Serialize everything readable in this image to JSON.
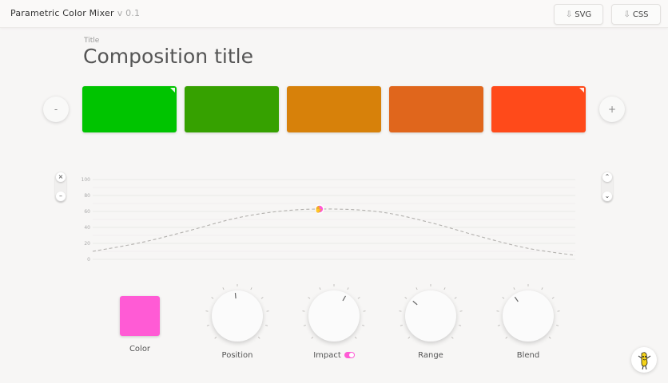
{
  "app": {
    "title": "Parametric Color Mixer",
    "version": "v 0.1"
  },
  "export": {
    "svg_label": "SVG",
    "css_label": "CSS",
    "download_icon": "download-arrow-icon"
  },
  "composition": {
    "title_label": "Title",
    "title": "Composition title"
  },
  "swatch_controls": {
    "remove_label": "-",
    "add_label": "+"
  },
  "swatches": [
    {
      "color": "#00c400"
    },
    {
      "color": "#36a100"
    },
    {
      "color": "#d7810a"
    },
    {
      "color": "#e0661c"
    },
    {
      "color": "#ff4a1a"
    }
  ],
  "curve_controls": {
    "close_label": "×",
    "minus_label": "–",
    "up_icon": "chevron-up-icon",
    "down_icon": "chevron-down-icon"
  },
  "chart_data": {
    "type": "line",
    "ylim": [
      0,
      100
    ],
    "yticks": [
      "100",
      "80",
      "60",
      "40",
      "20",
      "0"
    ],
    "grid": true,
    "x": [
      0,
      0.1,
      0.2,
      0.3,
      0.4,
      0.5,
      0.6,
      0.7,
      0.8,
      0.9,
      1
    ],
    "y": [
      10,
      21,
      36,
      52,
      61,
      63,
      59,
      46,
      29,
      14,
      5
    ],
    "handle": {
      "x": 0.47,
      "y": 63,
      "color": "#ff5bd5"
    }
  },
  "controls": {
    "color_label": "Color",
    "color_value": "#ff5bd5",
    "position_label": "Position",
    "impact_label": "Impact",
    "range_label": "Range",
    "blend_label": "Blend"
  }
}
